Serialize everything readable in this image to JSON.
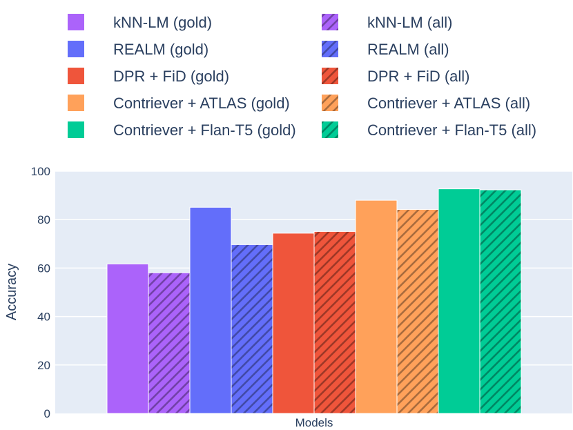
{
  "chart_data": {
    "type": "bar",
    "title": "",
    "xlabel": "Models",
    "ylabel": "Accuracy",
    "ylim": [
      0,
      100
    ],
    "yticks": [
      0,
      20,
      40,
      60,
      80,
      100
    ],
    "grid": true,
    "legend_position": "top",
    "categories": [
      "Models"
    ],
    "series": [
      {
        "name": "kNN-LM (gold)",
        "values": [
          61.7
        ],
        "color": "#ab63fa",
        "pattern": "none"
      },
      {
        "name": "kNN-LM (all)",
        "values": [
          58.1
        ],
        "color": "#ab63fa",
        "pattern": "diagonal"
      },
      {
        "name": "REALM (gold)",
        "values": [
          85.1
        ],
        "color": "#636efa",
        "pattern": "none"
      },
      {
        "name": "REALM (all)",
        "values": [
          69.7
        ],
        "color": "#636efa",
        "pattern": "diagonal"
      },
      {
        "name": "DPR + FiD (gold)",
        "values": [
          74.4
        ],
        "color": "#ef553b",
        "pattern": "none"
      },
      {
        "name": "DPR + FiD (all)",
        "values": [
          75.1
        ],
        "color": "#ef553b",
        "pattern": "diagonal"
      },
      {
        "name": "Contriever + ATLAS (gold)",
        "values": [
          88.0
        ],
        "color": "#ffa15a",
        "pattern": "none"
      },
      {
        "name": "Contriever + ATLAS (all)",
        "values": [
          84.2
        ],
        "color": "#ffa15a",
        "pattern": "diagonal"
      },
      {
        "name": "Contriever + Flan-T5 (gold)",
        "values": [
          92.7
        ],
        "color": "#00cc96",
        "pattern": "none"
      },
      {
        "name": "Contriever + Flan-T5 (all)",
        "values": [
          92.3
        ],
        "color": "#00cc96",
        "pattern": "diagonal"
      }
    ]
  },
  "colors": {
    "plot_background": "#e5ecf6",
    "grid": "#ffffff",
    "text": "#2a3f5f"
  }
}
